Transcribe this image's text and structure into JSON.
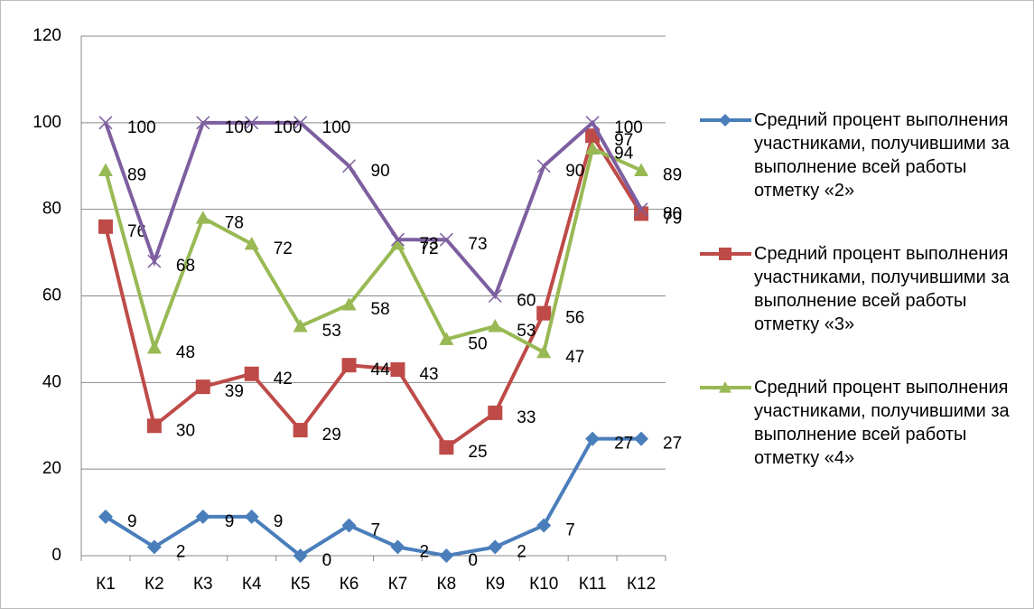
{
  "chart_data": {
    "type": "line",
    "categories": [
      "К1",
      "К2",
      "К3",
      "К4",
      "К5",
      "К6",
      "К7",
      "К8",
      "К9",
      "К10",
      "К11",
      "К12"
    ],
    "series": [
      {
        "name": "Средний процент выполнения участниками, получившими за выполнение всей работы отметку «2»",
        "color": "#4a7ebb",
        "marker": "diamond",
        "values": [
          9,
          2,
          9,
          9,
          0,
          7,
          2,
          0,
          2,
          7,
          27,
          27
        ]
      },
      {
        "name": "Средний процент выполнения участниками, получившими за выполнение всей работы отметку «3»",
        "color": "#be4b48",
        "marker": "square",
        "values": [
          76,
          30,
          39,
          42,
          29,
          44,
          43,
          25,
          33,
          56,
          97,
          79
        ]
      },
      {
        "name": "Средний процент выполнения участниками, получившими за выполнение всей работы отметку «4»",
        "color": "#98b954",
        "marker": "triangle",
        "values": [
          89,
          48,
          78,
          72,
          53,
          58,
          72,
          50,
          53,
          47,
          94,
          89
        ]
      },
      {
        "color": "#7d5fa0",
        "marker": "x",
        "values": [
          100,
          68,
          100,
          100,
          100,
          90,
          73,
          73,
          60,
          90,
          100,
          80
        ]
      }
    ],
    "ylim": [
      0,
      120
    ],
    "yticks": [
      0,
      20,
      40,
      60,
      80,
      100,
      120
    ],
    "grid": true
  }
}
